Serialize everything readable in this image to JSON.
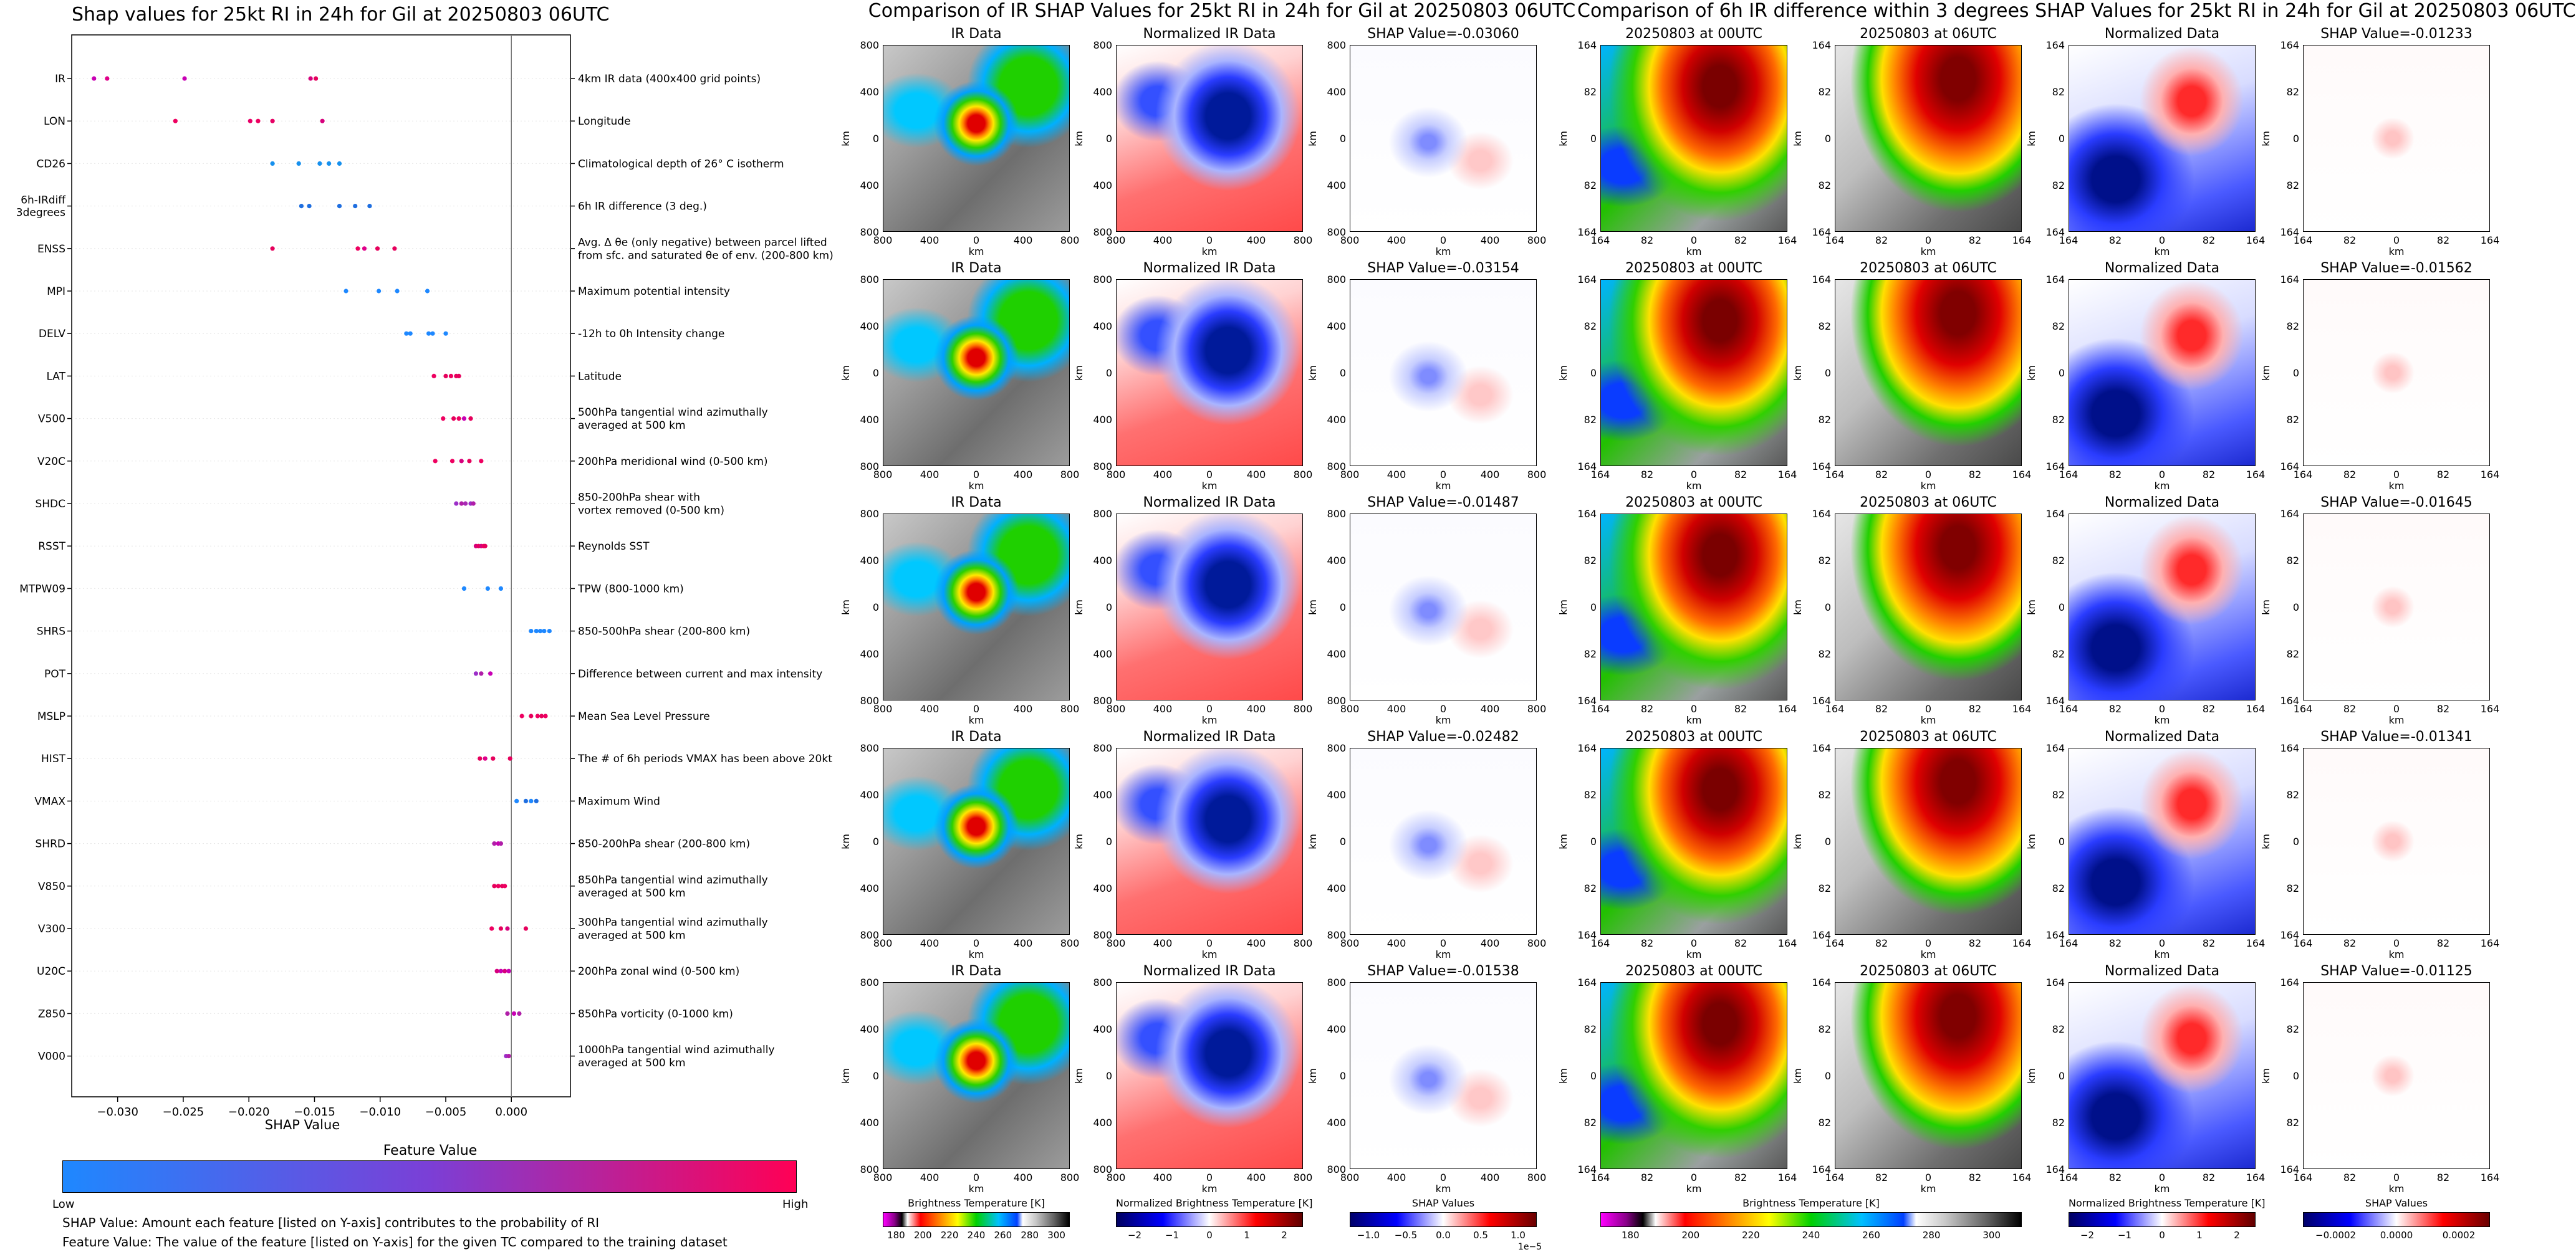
{
  "chart_data": [
    {
      "type": "scatter",
      "title": "Shap values for 25kt RI in 24h for Gil at 20250803 06UTC",
      "xlabel": "SHAP Value",
      "xlim": [
        -0.0335,
        0.0045
      ],
      "xticks": [
        -0.03,
        -0.025,
        -0.02,
        -0.015,
        -0.01,
        -0.005,
        0.0
      ],
      "xtick_labels": [
        "−0.030",
        "−0.025",
        "−0.020",
        "−0.015",
        "−0.010",
        "−0.005",
        "0.000"
      ],
      "colorbar": {
        "title": "Feature Value",
        "low": "Low",
        "high": "High",
        "colors": [
          "#1e88ff",
          "#7b3fd6",
          "#ff0055"
        ]
      },
      "notes": [
        "SHAP Value: Amount each feature [listed on Y-axis] contributes to the probability of RI",
        "Feature Value: The value of the feature [listed on Y-axis] for the given TC compared to the training dataset"
      ],
      "features": [
        {
          "name": "IR",
          "desc": "4km IR data (400x400 grid points)",
          "points": [
            [
              -0.0318,
              "#c800b4"
            ],
            [
              -0.0308,
              "#e0008a"
            ],
            [
              -0.0249,
              "#c800b4"
            ],
            [
              -0.0153,
              "#d6007c"
            ],
            [
              -0.0149,
              "#e6005c"
            ]
          ]
        },
        {
          "name": "LON",
          "desc": "Longitude",
          "points": [
            [
              -0.0256,
              "#ee0060"
            ],
            [
              -0.0199,
              "#e80068"
            ],
            [
              -0.0193,
              "#ee0060"
            ],
            [
              -0.0182,
              "#e60064"
            ],
            [
              -0.0144,
              "#d6007c"
            ]
          ]
        },
        {
          "name": "CD26",
          "desc": "Climatological depth of 26° C isotherm",
          "points": [
            [
              -0.0182,
              "#1690ee"
            ],
            [
              -0.0162,
              "#1690ee"
            ],
            [
              -0.0146,
              "#1690ee"
            ],
            [
              -0.0139,
              "#1690ee"
            ],
            [
              -0.0131,
              "#1690ee"
            ]
          ]
        },
        {
          "name": "6h-IRdiff\n3degrees",
          "desc": "6h IR difference (3 deg.)",
          "points": [
            [
              -0.016,
              "#1e6ee0"
            ],
            [
              -0.0154,
              "#1e6ee0"
            ],
            [
              -0.0131,
              "#1e6ee0"
            ],
            [
              -0.0119,
              "#1e6ee0"
            ],
            [
              -0.0108,
              "#1e6ee0"
            ]
          ]
        },
        {
          "name": "ENSS",
          "desc": "Avg. Δ θe (only negative) between parcel lifted\nfrom sfc. and saturated θe of env. (200-800 km)",
          "points": [
            [
              -0.0182,
              "#e6005c"
            ],
            [
              -0.0117,
              "#ee0060"
            ],
            [
              -0.0112,
              "#e0008a"
            ],
            [
              -0.0102,
              "#e6005c"
            ],
            [
              -0.0089,
              "#e6005c"
            ]
          ]
        },
        {
          "name": "MPI",
          "desc": "Maximum potential intensity",
          "points": [
            [
              -0.0126,
              "#1e88ff"
            ],
            [
              -0.0101,
              "#1e88ff"
            ],
            [
              -0.0087,
              "#1e88ff"
            ],
            [
              -0.0064,
              "#1e88ff"
            ]
          ]
        },
        {
          "name": "DELV",
          "desc": "-12h to 0h Intensity change",
          "points": [
            [
              -0.008,
              "#1e88ff"
            ],
            [
              -0.0077,
              "#1e88ff"
            ],
            [
              -0.0063,
              "#1e88ff"
            ],
            [
              -0.006,
              "#1e88ff"
            ],
            [
              -0.005,
              "#1e88ff"
            ]
          ]
        },
        {
          "name": "LAT",
          "desc": "Latitude",
          "points": [
            [
              -0.0059,
              "#ee0060"
            ],
            [
              -0.005,
              "#e6005c"
            ],
            [
              -0.0046,
              "#ee0060"
            ],
            [
              -0.0042,
              "#e6005c"
            ],
            [
              -0.004,
              "#e6005c"
            ]
          ]
        },
        {
          "name": "V500",
          "desc": "500hPa tangential wind azimuthally\naveraged at 500 km",
          "points": [
            [
              -0.0052,
              "#ee0060"
            ],
            [
              -0.0044,
              "#e6005c"
            ],
            [
              -0.004,
              "#ee0060"
            ],
            [
              -0.0036,
              "#c800b4"
            ],
            [
              -0.0031,
              "#e6005c"
            ]
          ]
        },
        {
          "name": "V20C",
          "desc": "200hPa meridional wind (0-500 km)",
          "points": [
            [
              -0.0058,
              "#ee0060"
            ],
            [
              -0.0045,
              "#ee0060"
            ],
            [
              -0.0038,
              "#d6007c"
            ],
            [
              -0.0032,
              "#e6005c"
            ],
            [
              -0.0023,
              "#ee0060"
            ]
          ]
        },
        {
          "name": "SHDC",
          "desc": "850-200hPa shear with\nvortex removed (0-500 km)",
          "points": [
            [
              -0.0042,
              "#9c2ec8"
            ],
            [
              -0.0038,
              "#b01ea8"
            ],
            [
              -0.0035,
              "#a82ab4"
            ],
            [
              -0.0031,
              "#9c2ec8"
            ],
            [
              -0.0029,
              "#b01ea8"
            ]
          ]
        },
        {
          "name": "RSST",
          "desc": "Reynolds SST",
          "points": [
            [
              -0.0027,
              "#d6007c"
            ],
            [
              -0.0025,
              "#e6005c"
            ],
            [
              -0.0023,
              "#d6007c"
            ],
            [
              -0.0021,
              "#ee0060"
            ],
            [
              -0.002,
              "#e6005c"
            ]
          ]
        },
        {
          "name": "MTPW09",
          "desc": "TPW (800-1000 km)",
          "points": [
            [
              -0.0036,
              "#1e88ff"
            ],
            [
              -0.0018,
              "#1e88ff"
            ],
            [
              -0.0008,
              "#1e88ff"
            ]
          ]
        },
        {
          "name": "SHRS",
          "desc": "850-500hPa shear (200-800 km)",
          "points": [
            [
              0.0015,
              "#1e88ff"
            ],
            [
              0.0019,
              "#1e88ff"
            ],
            [
              0.0022,
              "#1e88ff"
            ],
            [
              0.0025,
              "#1e88ff"
            ],
            [
              0.0029,
              "#1e88ff"
            ]
          ]
        },
        {
          "name": "POT",
          "desc": "Difference between current and max intensity",
          "points": [
            [
              -0.0027,
              "#9c2ec8"
            ],
            [
              -0.0023,
              "#b01ea8"
            ],
            [
              -0.0016,
              "#c800b4"
            ]
          ]
        },
        {
          "name": "MSLP",
          "desc": "Mean Sea Level Pressure",
          "points": [
            [
              0.0008,
              "#ee0060"
            ],
            [
              0.0015,
              "#e6005c"
            ],
            [
              0.002,
              "#ee0060"
            ],
            [
              0.0023,
              "#e6005c"
            ],
            [
              0.0026,
              "#ee0060"
            ]
          ]
        },
        {
          "name": "HIST",
          "desc": "The # of 6h periods VMAX has been above 20kt",
          "points": [
            [
              -0.0024,
              "#e6005c"
            ],
            [
              -0.002,
              "#e0008a"
            ],
            [
              -0.0014,
              "#e6005c"
            ],
            [
              -0.0001,
              "#e6005c"
            ]
          ]
        },
        {
          "name": "VMAX",
          "desc": "Maximum Wind",
          "points": [
            [
              0.0004,
              "#1e88ff"
            ],
            [
              0.0011,
              "#1e6ee0"
            ],
            [
              0.0015,
              "#1e88ff"
            ],
            [
              0.0019,
              "#1e6ee0"
            ]
          ]
        },
        {
          "name": "SHRD",
          "desc": "850-200hPa shear (200-800 km)",
          "points": [
            [
              -0.0013,
              "#b01ea8"
            ],
            [
              -0.001,
              "#c800b4"
            ],
            [
              -0.0008,
              "#b01ea8"
            ]
          ]
        },
        {
          "name": "V850",
          "desc": "850hPa tangential wind azimuthally\naveraged at 500 km",
          "points": [
            [
              -0.0013,
              "#e6005c"
            ],
            [
              -0.001,
              "#ee0060"
            ],
            [
              -0.0007,
              "#e6005c"
            ],
            [
              -0.0005,
              "#ee0060"
            ]
          ]
        },
        {
          "name": "V300",
          "desc": "300hPa tangential wind azimuthally\naveraged at 500 km",
          "points": [
            [
              -0.0015,
              "#ee0060"
            ],
            [
              -0.0008,
              "#e6005c"
            ],
            [
              -0.0003,
              "#d6007c"
            ],
            [
              0.0011,
              "#e6005c"
            ]
          ]
        },
        {
          "name": "U20C",
          "desc": "200hPa zonal wind (0-500 km)",
          "points": [
            [
              -0.0011,
              "#d6007c"
            ],
            [
              -0.0008,
              "#c800b4"
            ],
            [
              -0.0005,
              "#d6007c"
            ],
            [
              -0.0002,
              "#c800b4"
            ]
          ]
        },
        {
          "name": "Z850",
          "desc": "850hPa vorticity (0-1000 km)",
          "points": [
            [
              -0.0003,
              "#b01ea8"
            ],
            [
              0.0002,
              "#c800b4"
            ],
            [
              0.0006,
              "#b01ea8"
            ]
          ]
        },
        {
          "name": "V000",
          "desc": "1000hPa tangential wind azimuthally\naveraged at 500 km",
          "points": [
            [
              -0.0004,
              "#9c2ec8"
            ],
            [
              -0.0002,
              "#b01ea8"
            ]
          ]
        }
      ]
    },
    {
      "type": "heatmap",
      "title": "Comparison of IR SHAP Values for 25kt RI in 24h for Gil at 20250803 06UTC",
      "columns": [
        "IR Data",
        "Normalized IR Data",
        "SHAP Value"
      ],
      "shap_titles": [
        "SHAP Value=-0.03060",
        "SHAP Value=-0.03154",
        "SHAP Value=-0.01487",
        "SHAP Value=-0.02482",
        "SHAP Value=-0.01538"
      ],
      "y_ticks": [
        "800",
        "400",
        "0",
        "400",
        "800"
      ],
      "x_ticks": [
        "800",
        "400",
        "0",
        "400",
        "800"
      ],
      "axis_label": "km",
      "colorbars": [
        {
          "label": "Brightness Temperature [K]",
          "ticks": [
            "180",
            "200",
            "220",
            "240",
            "260",
            "280",
            "300"
          ]
        },
        {
          "label": "Normalized Brightness Temperature [K]",
          "ticks": [
            "−2",
            "−1",
            "0",
            "1",
            "2"
          ]
        },
        {
          "label": "SHAP Values",
          "ticks": [
            "−1.0",
            "−0.5",
            "0.0",
            "0.5",
            "1.0"
          ],
          "offset": "1e−5"
        }
      ]
    },
    {
      "type": "heatmap",
      "title": "Comparison of 6h IR difference within 3 degrees SHAP Values for 25kt RI in 24h for Gil at 20250803 06UTC",
      "columns": [
        "20250803 at 00UTC",
        "20250803 at 06UTC",
        "Normalized Data"
      ],
      "shap_titles": [
        "SHAP Value=-0.01233",
        "SHAP Value=-0.01562",
        "SHAP Value=-0.01645",
        "SHAP Value=-0.01341",
        "SHAP Value=-0.01125"
      ],
      "y_ticks": [
        "164",
        "82",
        "0",
        "82",
        "164"
      ],
      "x_ticks": [
        "164",
        "82",
        "0",
        "82",
        "164"
      ],
      "axis_label": "km",
      "colorbars": [
        {
          "label": "Brightness Temperature [K]",
          "ticks": [
            "180",
            "200",
            "220",
            "240",
            "260",
            "280",
            "300"
          ]
        },
        {
          "label": "Normalized Brightness Temperature [K]",
          "ticks": [
            "−2",
            "−1",
            "0",
            "1",
            "2"
          ]
        },
        {
          "label": "SHAP Values",
          "ticks": [
            "−0.0002",
            "0.0000",
            "0.0002"
          ]
        }
      ]
    }
  ]
}
